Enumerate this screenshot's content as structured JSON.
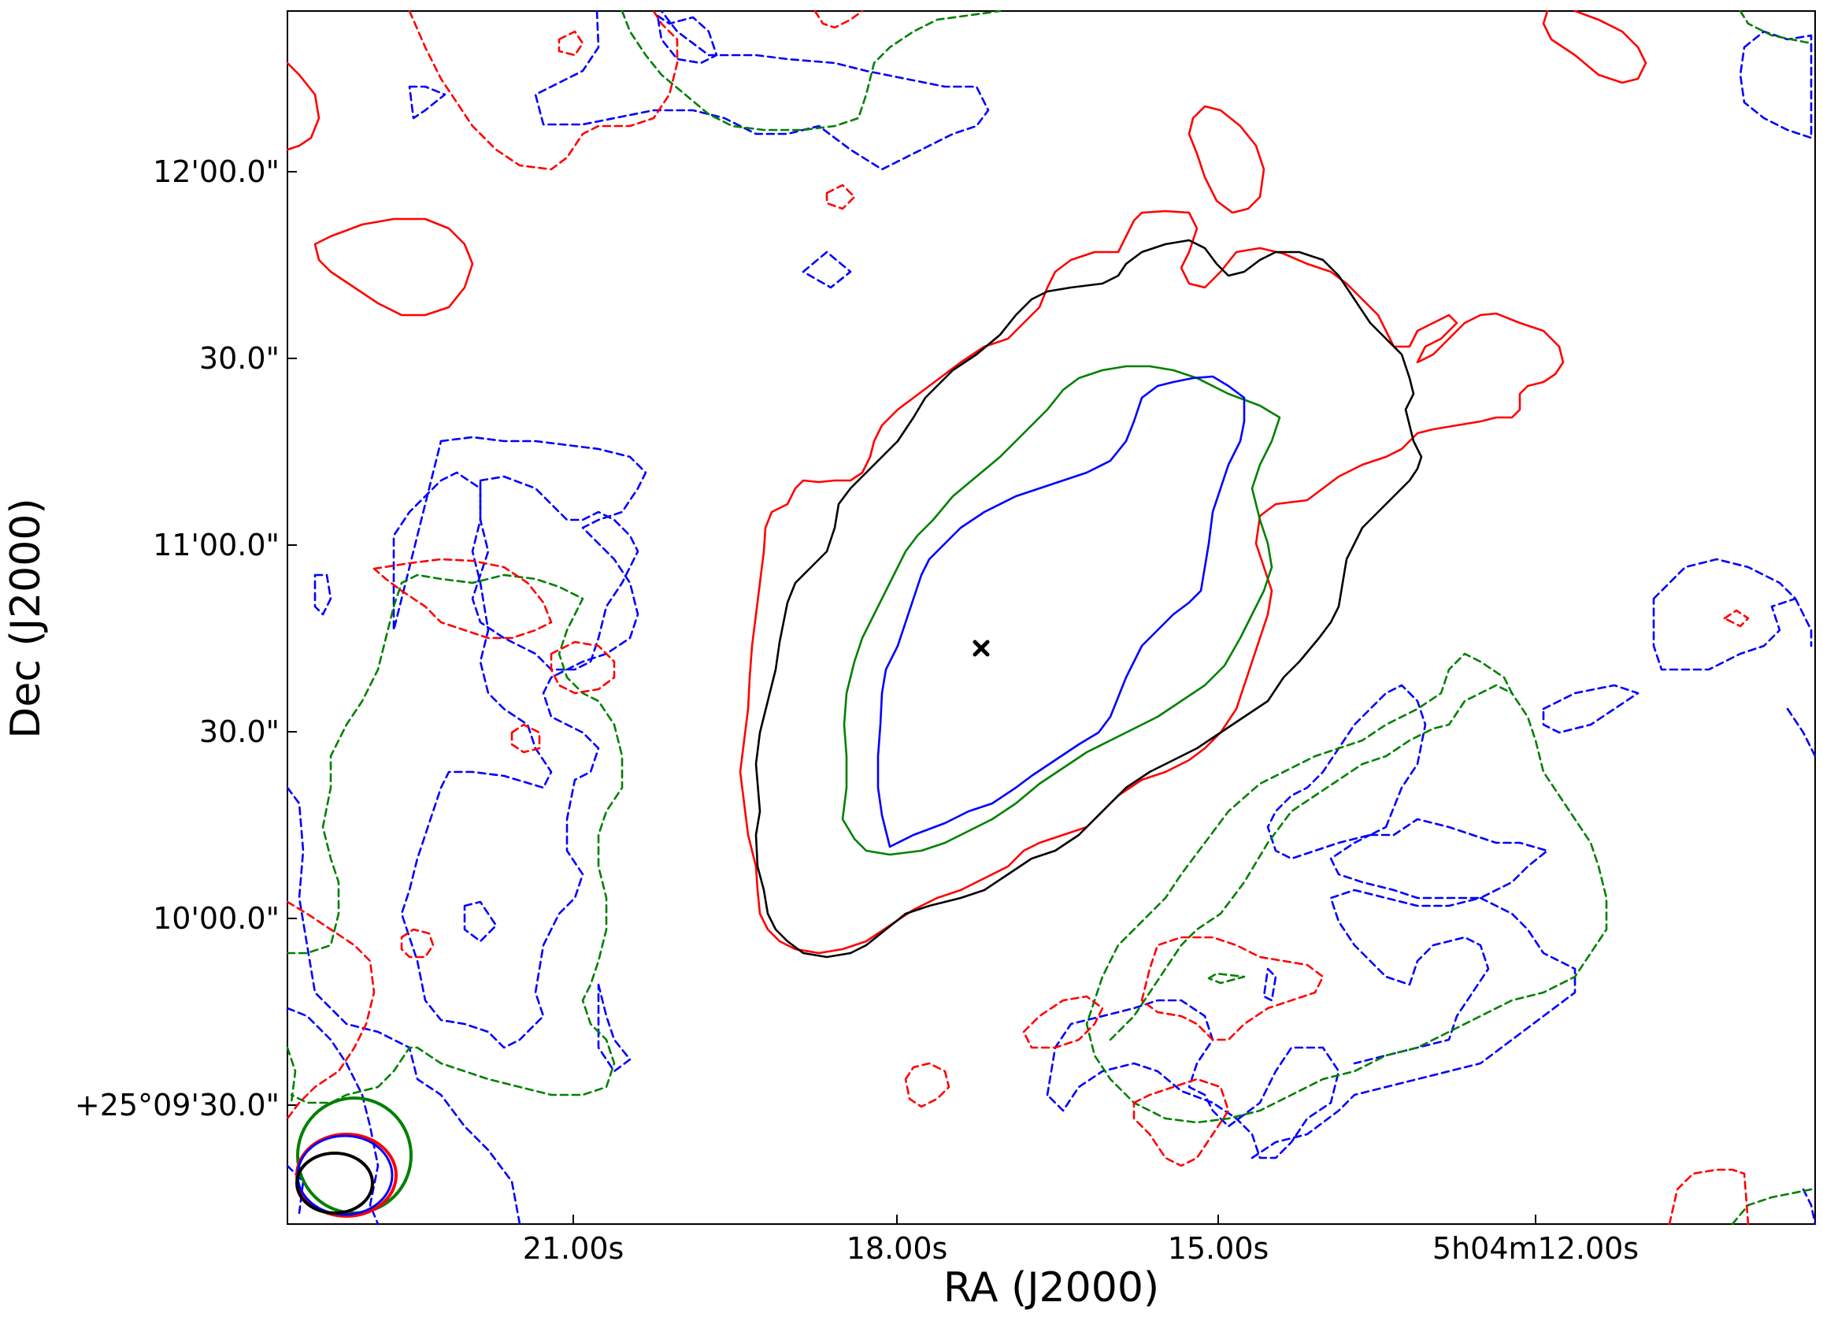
{
  "chart_data": {
    "type": "contour",
    "xlabel": "RA (J2000)",
    "ylabel": "Dec (J2000)",
    "x_ticks": [
      "21.00s",
      "18.00s",
      "15.00s",
      "5h04m12.00s"
    ],
    "y_ticks": [
      "+25°09'30.0\"",
      "10'00.0\"",
      "30.0\"",
      "11'00.0\"",
      "30.0\"",
      "12'00.0\""
    ],
    "source_marker": {
      "symbol": "x",
      "ra_s": 16.8,
      "dec": "+25°10'43\""
    },
    "contour_colors": {
      "red": "#ff0000",
      "black": "#000000",
      "green": "#008000",
      "blue": "#0000ff"
    },
    "beam_colors": [
      "#008000",
      "#ff0000",
      "#0000ff",
      "#000000"
    ]
  }
}
